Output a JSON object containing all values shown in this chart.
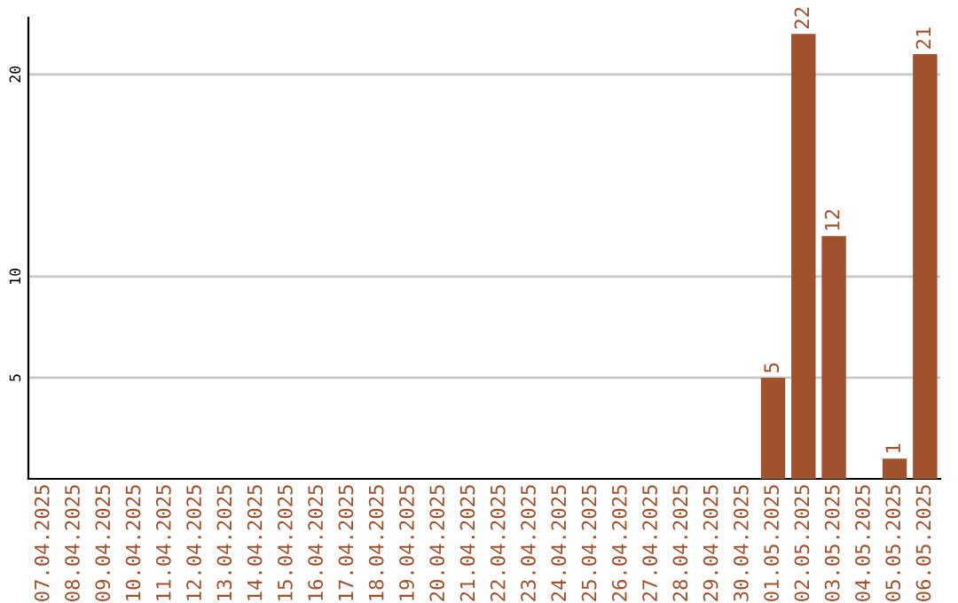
{
  "chart_data": {
    "type": "bar",
    "categories": [
      "07.04.2025",
      "08.04.2025",
      "09.04.2025",
      "10.04.2025",
      "11.04.2025",
      "12.04.2025",
      "13.04.2025",
      "14.04.2025",
      "15.04.2025",
      "16.04.2025",
      "17.04.2025",
      "18.04.2025",
      "19.04.2025",
      "20.04.2025",
      "21.04.2025",
      "22.04.2025",
      "23.04.2025",
      "24.04.2025",
      "25.04.2025",
      "26.04.2025",
      "27.04.2025",
      "28.04.2025",
      "29.04.2025",
      "30.04.2025",
      "01.05.2025",
      "02.05.2025",
      "03.05.2025",
      "04.05.2025",
      "05.05.2025",
      "06.05.2025"
    ],
    "values": [
      0,
      0,
      0,
      0,
      0,
      0,
      0,
      0,
      0,
      0,
      0,
      0,
      0,
      0,
      0,
      0,
      0,
      0,
      0,
      0,
      0,
      0,
      0,
      0,
      5,
      22,
      12,
      0,
      1,
      21
    ],
    "value_labels": [
      null,
      null,
      null,
      null,
      null,
      null,
      null,
      null,
      null,
      null,
      null,
      null,
      null,
      null,
      null,
      null,
      null,
      null,
      null,
      null,
      null,
      null,
      null,
      null,
      "5",
      "22",
      "12",
      null,
      "1",
      "21"
    ],
    "color": "#a0522d",
    "ylim": [
      0,
      22.8
    ],
    "yticks": [
      5,
      10,
      20
    ],
    "grid": "y",
    "legend": false
  }
}
